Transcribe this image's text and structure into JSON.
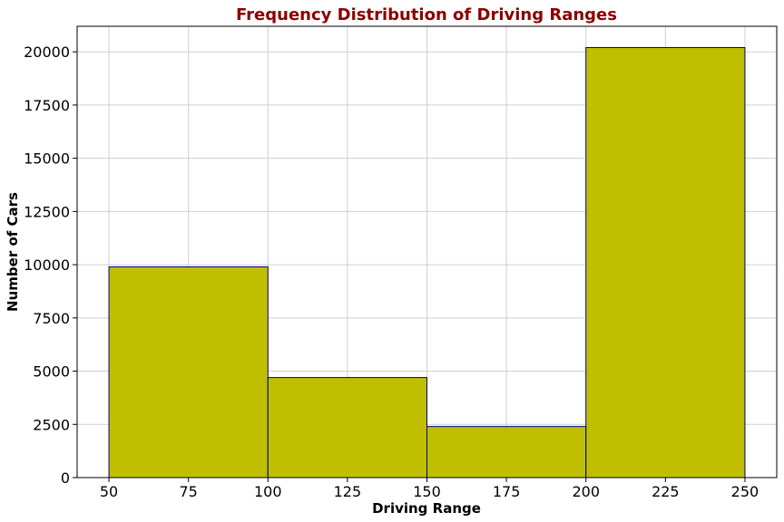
{
  "chart_data": {
    "type": "bar",
    "title": "Frequency Distribution of Driving Ranges",
    "xlabel": "Driving Range",
    "ylabel": "Number of Cars",
    "bins": [
      {
        "start": 50,
        "end": 100,
        "value": 9900
      },
      {
        "start": 100,
        "end": 150,
        "value": 4700
      },
      {
        "start": 150,
        "end": 200,
        "value": 2400
      },
      {
        "start": 200,
        "end": 250,
        "value": 20200
      }
    ],
    "xlim": [
      40,
      260
    ],
    "ylim": [
      0,
      21200
    ],
    "x_ticks": [
      50,
      75,
      100,
      125,
      150,
      175,
      200,
      225,
      250
    ],
    "y_ticks": [
      0,
      2500,
      5000,
      7500,
      10000,
      12500,
      15000,
      17500,
      20000
    ],
    "grid": true,
    "colors": {
      "bar_fill": "#bfbf00",
      "bar_edge": "#000080",
      "title": "#8b0000",
      "grid": "#d0d0d0"
    }
  }
}
